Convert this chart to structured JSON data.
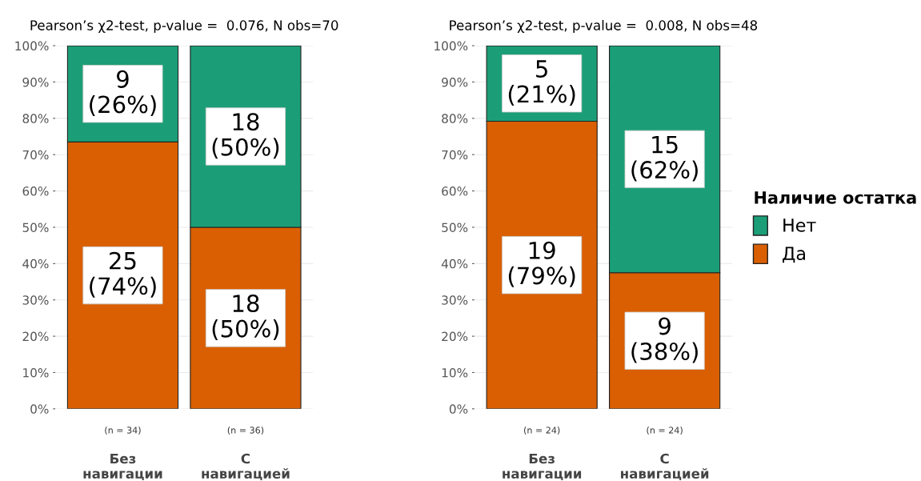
{
  "chart_data": [
    {
      "type": "bar",
      "stacked": true,
      "title": "Pearson’s χ2-test, p-value =  0.076, N obs=70",
      "categories": [
        "Без\nнавигации",
        "С\nнавигацией"
      ],
      "series": [
        {
          "name": "Да",
          "color": "#d95f02",
          "values": [
            73.5,
            50
          ],
          "value_labels": [
            "25\n(74%)",
            "18\n(50%)"
          ]
        },
        {
          "name": "Нет",
          "color": "#1b9e77",
          "values": [
            26.5,
            50
          ],
          "value_labels": [
            "9\n(26%)",
            "18\n(50%)"
          ]
        }
      ],
      "annotations": [
        "(n = 34)",
        "(n = 36)"
      ],
      "ylim": [
        0,
        100
      ],
      "yticks": [
        {
          "value": 0,
          "label": "0%"
        },
        {
          "value": 10,
          "label": "10%"
        },
        {
          "value": 20,
          "label": "20%"
        },
        {
          "value": 30,
          "label": "30%"
        },
        {
          "value": 40,
          "label": "40%"
        },
        {
          "value": 50,
          "label": "50%"
        },
        {
          "value": 60,
          "label": "60%"
        },
        {
          "value": 70,
          "label": "70%"
        },
        {
          "value": 80,
          "label": "80%"
        },
        {
          "value": 90,
          "label": "90%"
        },
        {
          "value": 100,
          "label": "100%"
        }
      ],
      "grid": "y",
      "legend": "right"
    },
    {
      "type": "bar",
      "stacked": true,
      "title": "Pearson’s χ2-test, p-value =  0.008, N obs=48",
      "categories": [
        "Без\nнавигации",
        "С\nнавигацией"
      ],
      "series": [
        {
          "name": "Да",
          "color": "#d95f02",
          "values": [
            79.2,
            37.5
          ],
          "value_labels": [
            "19\n(79%)",
            "9\n(38%)"
          ]
        },
        {
          "name": "Нет",
          "color": "#1b9e77",
          "values": [
            20.8,
            62.5
          ],
          "value_labels": [
            "5\n(21%)",
            "15\n(62%)"
          ]
        }
      ],
      "annotations": [
        "(n = 24)",
        "(n = 24)"
      ],
      "ylim": [
        0,
        100
      ],
      "yticks": [
        {
          "value": 0,
          "label": "0%"
        },
        {
          "value": 10,
          "label": "10%"
        },
        {
          "value": 20,
          "label": "20%"
        },
        {
          "value": 30,
          "label": "30%"
        },
        {
          "value": 40,
          "label": "40%"
        },
        {
          "value": 50,
          "label": "50%"
        },
        {
          "value": 60,
          "label": "60%"
        },
        {
          "value": 70,
          "label": "70%"
        },
        {
          "value": 80,
          "label": "80%"
        },
        {
          "value": 90,
          "label": "90%"
        },
        {
          "value": 100,
          "label": "100%"
        }
      ],
      "grid": "y",
      "legend": "right",
      "legend_title": "Наличие остатка"
    }
  ]
}
